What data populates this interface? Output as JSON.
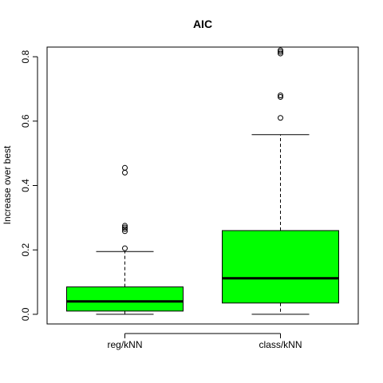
{
  "chart_data": {
    "type": "boxplot",
    "title": "AIC",
    "xlabel": "",
    "ylabel": "Increase over best",
    "ylim": [
      -0.03,
      0.83
    ],
    "yticks": [
      "0.0",
      "0.2",
      "0.4",
      "0.6",
      "0.8"
    ],
    "ytick_values": [
      0.0,
      0.2,
      0.4,
      0.6,
      0.8
    ],
    "grid": false,
    "box_color": "#00ff00",
    "categories": [
      "reg/kNN",
      "class/kNN"
    ],
    "boxes": [
      {
        "name": "reg/kNN",
        "whisker_low": 0.0,
        "q1": 0.01,
        "median": 0.04,
        "q3": 0.085,
        "whisker_high": 0.195,
        "outliers": [
          0.205,
          0.258,
          0.265,
          0.27,
          0.275,
          0.44,
          0.455
        ]
      },
      {
        "name": "class/kNN",
        "whisker_low": 0.0,
        "q1": 0.035,
        "median": 0.112,
        "q3": 0.26,
        "whisker_high": 0.558,
        "outliers": [
          0.61,
          0.675,
          0.68,
          0.81,
          0.815,
          0.82
        ]
      }
    ]
  }
}
